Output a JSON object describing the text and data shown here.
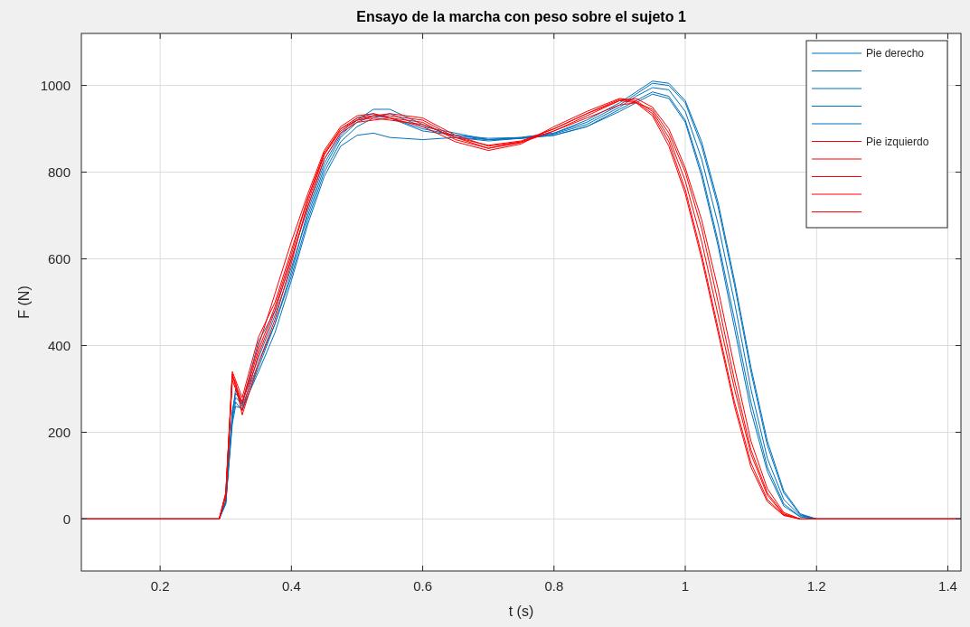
{
  "chart_data": {
    "type": "line",
    "title": "Ensayo de la marcha con peso sobre el sujeto 1",
    "xlabel": "t (s)",
    "ylabel": "F (N)",
    "x": [
      0.08,
      0.29,
      0.3,
      0.31,
      0.315,
      0.325,
      0.35,
      0.375,
      0.4,
      0.425,
      0.45,
      0.475,
      0.5,
      0.525,
      0.55,
      0.6,
      0.65,
      0.7,
      0.75,
      0.8,
      0.85,
      0.9,
      0.925,
      0.95,
      0.975,
      1.0,
      1.025,
      1.05,
      1.075,
      1.1,
      1.125,
      1.15,
      1.175,
      1.2,
      1.25,
      1.42
    ],
    "series": [
      {
        "name": "Pie derecho",
        "color": "#0072bd",
        "values": [
          0,
          0,
          40,
          250,
          290,
          270,
          372,
          470,
          580,
          700,
          810,
          880,
          915,
          930,
          925,
          900,
          885,
          875,
          880,
          890,
          915,
          955,
          980,
          1005,
          1000,
          960,
          860,
          720,
          540,
          340,
          170,
          60,
          10,
          0,
          0,
          0
        ]
      },
      {
        "color": "#0072bd",
        "values": [
          0,
          0,
          40,
          240,
          300,
          260,
          360,
          450,
          560,
          690,
          800,
          870,
          905,
          925,
          935,
          905,
          890,
          875,
          878,
          888,
          910,
          950,
          975,
          995,
          990,
          940,
          830,
          680,
          500,
          300,
          140,
          45,
          8,
          0,
          0,
          0
        ]
      },
      {
        "color": "#0072bd",
        "values": [
          0,
          0,
          35,
          230,
          270,
          250,
          350,
          450,
          570,
          710,
          820,
          885,
          920,
          945,
          945,
          910,
          880,
          872,
          878,
          885,
          905,
          945,
          965,
          985,
          975,
          920,
          800,
          640,
          460,
          270,
          120,
          35,
          5,
          0,
          0,
          0
        ]
      },
      {
        "color": "#0072bd",
        "values": [
          0,
          0,
          40,
          240,
          280,
          265,
          410,
          480,
          600,
          720,
          830,
          890,
          925,
          935,
          925,
          895,
          885,
          878,
          880,
          890,
          920,
          960,
          985,
          1010,
          1005,
          965,
          870,
          730,
          550,
          350,
          180,
          65,
          12,
          0,
          0,
          0
        ]
      },
      {
        "color": "#0072bd",
        "values": [
          0,
          0,
          35,
          220,
          260,
          255,
          340,
          430,
          550,
          680,
          790,
          860,
          885,
          890,
          880,
          875,
          880,
          875,
          878,
          885,
          905,
          940,
          960,
          980,
          970,
          915,
          790,
          630,
          440,
          250,
          110,
          30,
          5,
          0,
          0,
          0
        ]
      },
      {
        "name": "Pie izquierdo",
        "color": "#ff0000",
        "values": [
          0,
          0,
          60,
          340,
          320,
          280,
          420,
          500,
          620,
          740,
          840,
          900,
          925,
          930,
          930,
          920,
          880,
          855,
          870,
          900,
          935,
          965,
          960,
          930,
          860,
          750,
          600,
          430,
          260,
          120,
          40,
          8,
          0,
          0,
          0,
          0
        ]
      },
      {
        "color": "#ff0000",
        "values": [
          0,
          0,
          55,
          330,
          310,
          270,
          400,
          520,
          640,
          750,
          850,
          905,
          930,
          935,
          925,
          905,
          870,
          850,
          865,
          905,
          940,
          970,
          965,
          940,
          880,
          780,
          640,
          470,
          300,
          150,
          55,
          10,
          0,
          0,
          0,
          0
        ]
      },
      {
        "color": "#ff0000",
        "values": [
          0,
          0,
          50,
          320,
          300,
          250,
          380,
          480,
          600,
          720,
          830,
          890,
          915,
          920,
          925,
          915,
          875,
          855,
          868,
          895,
          925,
          955,
          960,
          945,
          890,
          800,
          670,
          500,
          320,
          160,
          60,
          12,
          0,
          0,
          0,
          0
        ]
      },
      {
        "color": "#ff0000",
        "values": [
          0,
          0,
          60,
          330,
          315,
          240,
          360,
          460,
          590,
          730,
          840,
          895,
          920,
          930,
          935,
          925,
          885,
          860,
          870,
          895,
          930,
          965,
          970,
          950,
          900,
          810,
          690,
          530,
          350,
          180,
          70,
          15,
          0,
          0,
          0,
          0
        ]
      },
      {
        "color": "#ff0000",
        "values": [
          0,
          0,
          55,
          335,
          305,
          265,
          390,
          490,
          610,
          740,
          845,
          900,
          920,
          925,
          920,
          910,
          880,
          862,
          872,
          900,
          935,
          968,
          962,
          935,
          870,
          760,
          610,
          440,
          270,
          130,
          45,
          9,
          0,
          0,
          0,
          0
        ]
      }
    ],
    "xlim": [
      0.08,
      1.42
    ],
    "xticks": [
      0.2,
      0.4,
      0.6,
      0.8,
      1,
      1.2,
      1.4
    ],
    "ylim": [
      -120,
      1120
    ],
    "yticks": [
      0,
      200,
      400,
      600,
      800,
      1000
    ],
    "grid": true,
    "legend": "top right",
    "line_style": "solid"
  }
}
